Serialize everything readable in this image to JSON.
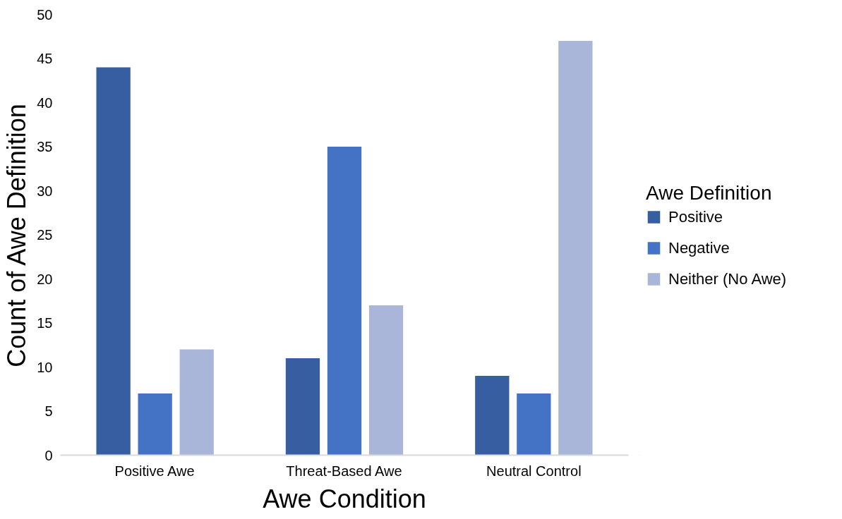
{
  "chart_data": {
    "type": "bar",
    "xlabel": "Awe Condition",
    "ylabel": "Count of Awe Definition",
    "legend_title": "Awe Definition",
    "categories": [
      "Positive Awe",
      "Threat-Based Awe",
      "Neutral Control"
    ],
    "series": [
      {
        "name": "Positive",
        "color": "#375ea0",
        "values": [
          44,
          11,
          9
        ]
      },
      {
        "name": "Negative",
        "color": "#4472c4",
        "values": [
          7,
          35,
          7
        ]
      },
      {
        "name": "Neither (No Awe)",
        "color": "#a9b6da",
        "values": [
          12,
          17,
          47
        ]
      }
    ],
    "ylim": [
      0,
      50
    ],
    "yticks": [
      0,
      5,
      10,
      15,
      20,
      25,
      30,
      35,
      40,
      45,
      50
    ],
    "grid": false,
    "legend": "right"
  }
}
